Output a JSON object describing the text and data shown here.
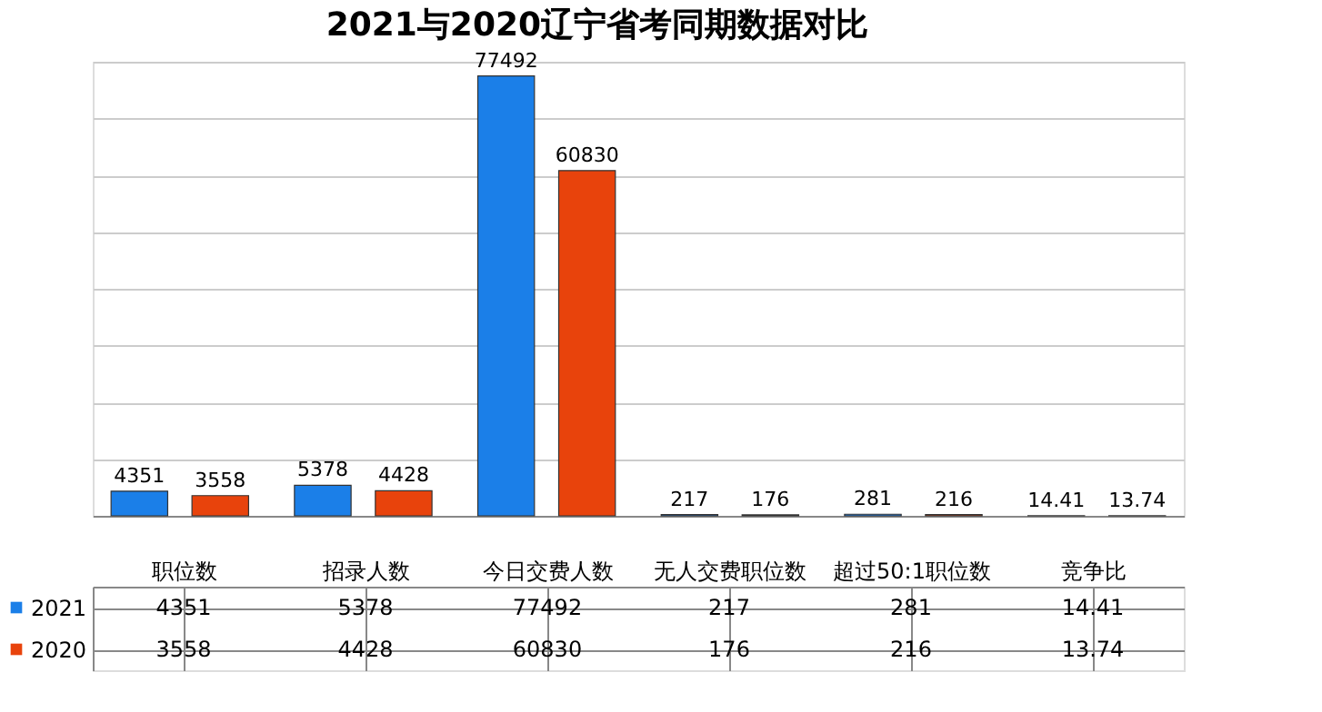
{
  "chart_data": {
    "type": "bar",
    "title": "2021与2020辽宁省考同期数据对比",
    "categories": [
      "职位数",
      "招录人数",
      "今日交费人数",
      "无人交费职位数",
      "超过50:1职位数",
      "竞争比"
    ],
    "series": [
      {
        "name": "2021",
        "color": "#1b7fe8",
        "values": [
          4351,
          5378,
          77492,
          217,
          281,
          14.41
        ],
        "value_labels": [
          "4351",
          "5378",
          "77492",
          "217",
          "281",
          "14.41"
        ]
      },
      {
        "name": "2020",
        "color": "#e8430c",
        "values": [
          3558,
          4428,
          60830,
          176,
          216,
          13.74
        ],
        "value_labels": [
          "3558",
          "4428",
          "60830",
          "176",
          "216",
          "13.74"
        ]
      }
    ],
    "annotations": [
      "4351",
      "5378",
      "77492",
      "217",
      "281",
      "14.41",
      "3558",
      "4428",
      "60830",
      "176",
      "216",
      "13.74"
    ],
    "grid": "y",
    "legend": "bottom left"
  }
}
